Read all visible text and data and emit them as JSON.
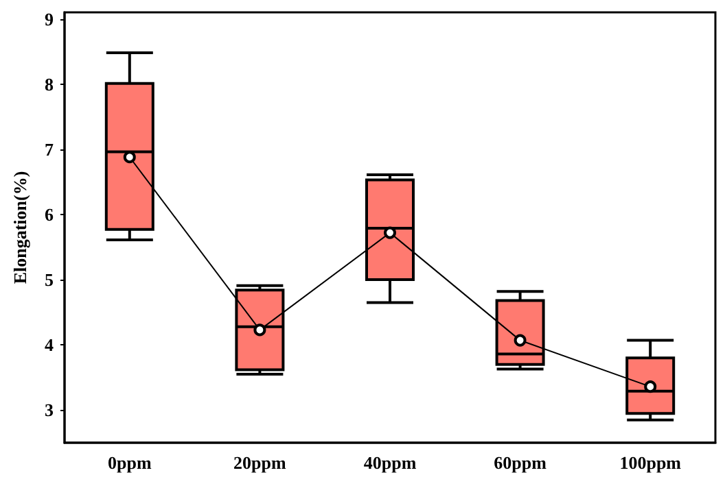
{
  "chart_data": {
    "type": "box",
    "ylabel": "Elongation(%)",
    "categories": [
      "0ppm",
      "20ppm",
      "40ppm",
      "60ppm",
      "100ppm"
    ],
    "ylim": [
      2.5,
      9.1
    ],
    "yticks": [
      3,
      4,
      5,
      6,
      7,
      8,
      9
    ],
    "grid": false,
    "series": [
      {
        "color": "#ff7a70",
        "boxes": [
          {
            "low": 5.61,
            "q1": 5.77,
            "median": 6.96,
            "q3": 8.01,
            "high": 8.48
          },
          {
            "low": 3.55,
            "q1": 3.62,
            "median": 4.28,
            "q3": 4.84,
            "high": 4.91
          },
          {
            "low": 4.65,
            "q1": 5.0,
            "median": 5.79,
            "q3": 6.53,
            "high": 6.61
          },
          {
            "low": 3.63,
            "q1": 3.7,
            "median": 3.86,
            "q3": 4.68,
            "high": 4.82
          },
          {
            "low": 2.85,
            "q1": 2.95,
            "median": 3.29,
            "q3": 3.8,
            "high": 4.07
          }
        ]
      },
      {
        "type": "line",
        "color": "#000000",
        "marker": "circle",
        "values": [
          6.88,
          4.23,
          5.72,
          4.07,
          3.36
        ]
      }
    ]
  }
}
